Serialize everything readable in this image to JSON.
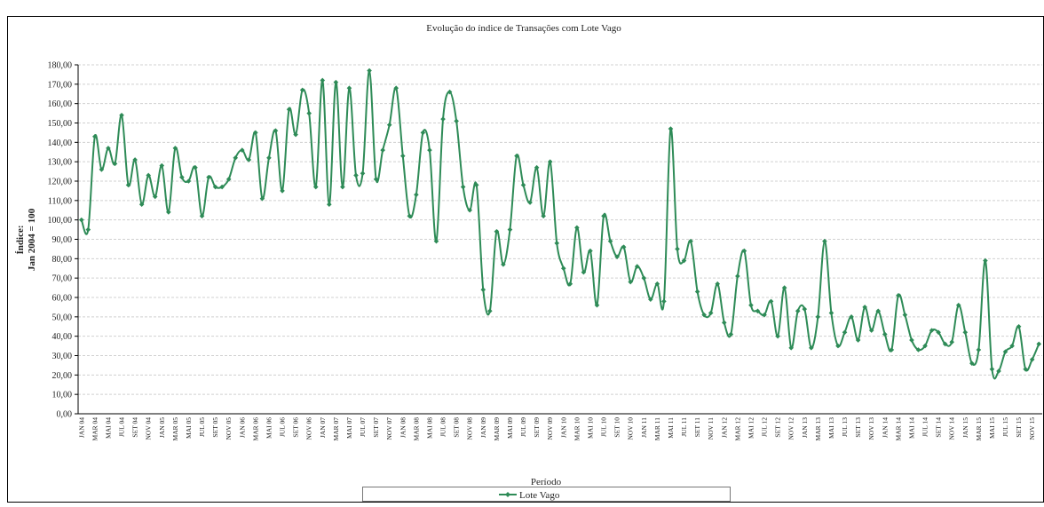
{
  "chart_data": {
    "type": "line",
    "title": "Evolução do índice de Transações com Lote Vago",
    "ylabel": [
      "Índice:",
      "Jan 2004 = 100"
    ],
    "xlabel": "Período",
    "categories": [
      "JAN 04",
      null,
      "MAR 04",
      null,
      "MAI 04",
      null,
      "JUL 04",
      null,
      "SET 04",
      null,
      "NOV 04",
      null,
      "JAN 05",
      null,
      "MAR 05",
      null,
      "MAI 05",
      null,
      "JUL 05",
      null,
      "SET 05",
      null,
      "NOV 05",
      null,
      "JAN 06",
      null,
      "MAR 06",
      null,
      "MAI 06",
      null,
      "JUL 06",
      null,
      "SET 06",
      null,
      "NOV 06",
      null,
      "JAN 07",
      null,
      "MAR 07",
      null,
      "MAI 07",
      null,
      "JUL 07",
      null,
      "SET 07",
      null,
      "NOV 07",
      null,
      "JAN 08",
      null,
      "MAR 08",
      null,
      "MAI 08",
      null,
      "JUL 08",
      null,
      "SET 08",
      null,
      "NOV 08",
      null,
      "JAN 09",
      null,
      "MAR 09",
      null,
      "MAI 09",
      null,
      "JUL 09",
      null,
      "SET 09",
      null,
      "NOV 09",
      null,
      "JAN 10",
      null,
      "MAR 10",
      null,
      "MAI 10",
      null,
      "JUL 10",
      null,
      "SET 10",
      null,
      "NOV 10",
      null,
      "JAN 11",
      null,
      "MAR 11",
      null,
      "MAI 11",
      null,
      "JUL 11",
      null,
      "SET 11",
      null,
      "NOV 11",
      null,
      "JAN 12",
      null,
      "MAR 12",
      null,
      "MAI 12",
      null,
      "JUL 12",
      null,
      "SET 12",
      null,
      "NOV 12",
      null,
      "JAN 13",
      null,
      "MAR 13",
      null,
      "MAI 13",
      null,
      "JUL 13",
      null,
      "SET 13",
      null,
      "NOV 13",
      null,
      "JAN 14",
      null,
      "MAR 14",
      null,
      "MAI 14",
      null,
      "JUL 14",
      null,
      "SET 14",
      null,
      "NOV 14",
      null,
      "JAN 15",
      null,
      "MAR 15",
      null,
      "MAI 15",
      null,
      "JUL 15",
      null,
      "SET 15",
      null,
      "NOV 15",
      null
    ],
    "series": [
      {
        "name": "Lote Vago",
        "color": "#2e8b57",
        "values": [
          100,
          95,
          143,
          126,
          137,
          129,
          154,
          118,
          131,
          108,
          123,
          112,
          128,
          104,
          137,
          122,
          120,
          127,
          102,
          122,
          117,
          117,
          121,
          132,
          136,
          131,
          145,
          111,
          132,
          146,
          115,
          157,
          144,
          167,
          155,
          117,
          172,
          108,
          171,
          117,
          168,
          123,
          124,
          177,
          121,
          136,
          149,
          168,
          133,
          102,
          113,
          145,
          136,
          89,
          152,
          166,
          151,
          117,
          105,
          118,
          64,
          53,
          94,
          77,
          95,
          133,
          118,
          109,
          127,
          102,
          130,
          88,
          75,
          67,
          96,
          73,
          84,
          56,
          102,
          89,
          81,
          86,
          68,
          76,
          70,
          59,
          67,
          58,
          147,
          85,
          79,
          89,
          63,
          51,
          52,
          67,
          47,
          41,
          71,
          84,
          56,
          53,
          51,
          58,
          40,
          65,
          34,
          53,
          54,
          34,
          50,
          89,
          52,
          35,
          42,
          50,
          38,
          55,
          43,
          53,
          41,
          33,
          61,
          51,
          38,
          33,
          35,
          43,
          42,
          36,
          37,
          56,
          42,
          26,
          33,
          79,
          23,
          22,
          32,
          35,
          45,
          23,
          28,
          36
        ]
      }
    ],
    "ylim": [
      0,
      180
    ],
    "yticks": [
      {
        "value": 0,
        "label": "0,00"
      },
      {
        "value": 10,
        "label": "10,00"
      },
      {
        "value": 20,
        "label": "20,00"
      },
      {
        "value": 30,
        "label": "30,00"
      },
      {
        "value": 40,
        "label": "40,00"
      },
      {
        "value": 50,
        "label": "50,00"
      },
      {
        "value": 60,
        "label": "60,00"
      },
      {
        "value": 70,
        "label": "70,00"
      },
      {
        "value": 80,
        "label": "80,00"
      },
      {
        "value": 90,
        "label": "90,00"
      },
      {
        "value": 100,
        "label": "100,00"
      },
      {
        "value": 110,
        "label": "110,00"
      },
      {
        "value": 120,
        "label": "120,00"
      },
      {
        "value": 130,
        "label": "130,00"
      },
      {
        "value": 140,
        "label": "140,00"
      },
      {
        "value": 150,
        "label": "150,00"
      },
      {
        "value": 160,
        "label": "160,00"
      },
      {
        "value": 170,
        "label": "170,00"
      },
      {
        "value": 180,
        "label": "180,00"
      }
    ],
    "grid": true,
    "legend": "bottom"
  }
}
